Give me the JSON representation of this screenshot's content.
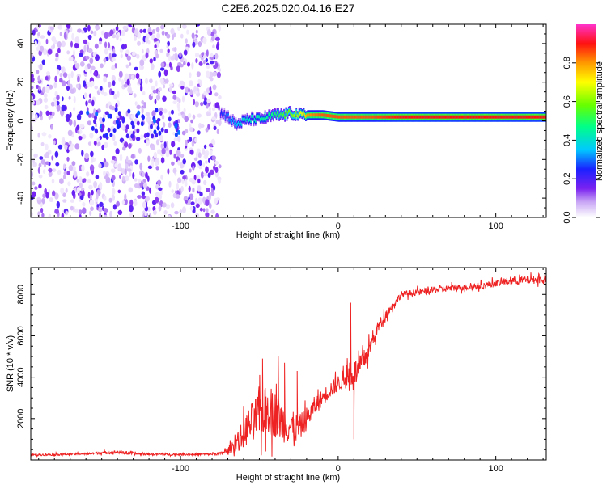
{
  "title": "C2E6.2025.020.04.16.E27",
  "chart_data": [
    {
      "type": "heatmap",
      "title": "C2E6.2025.020.04.16.E27",
      "xlabel": "Height of straight line (km)",
      "ylabel": "Frequency (Hz)",
      "xlim": [
        -195,
        132
      ],
      "ylim": [
        -50,
        50
      ],
      "x_ticks": [
        -100,
        0,
        100
      ],
      "x_tick_labels": [
        "-100",
        "0",
        "100"
      ],
      "y_ticks": [
        -40,
        -20,
        0,
        20,
        40
      ],
      "y_tick_labels": [
        "-40",
        "-20",
        "0",
        "20",
        "40"
      ],
      "colorbar": {
        "label": "Normalized spectral amplitude",
        "range": [
          0,
          1
        ],
        "ticks": [
          0,
          0.2,
          0.4,
          0.6,
          0.8
        ],
        "tick_labels": [
          "0.0",
          "0.2",
          "0.4",
          "0.6",
          "0.8"
        ],
        "colormap": "rainbow"
      },
      "noise_region": {
        "x_range": [
          -195,
          -75
        ],
        "freq_range": [
          -50,
          50
        ],
        "amplitude_range": [
          0.02,
          0.15
        ]
      },
      "ridge": {
        "x": [
          -75,
          -70,
          -65,
          -60,
          -55,
          -50,
          -45,
          -40,
          -35,
          -30,
          -25,
          -20,
          -10,
          0,
          10,
          20,
          40,
          60,
          80,
          90,
          100,
          110,
          120,
          132
        ],
        "freq": [
          4,
          2,
          -2,
          0,
          1,
          1,
          2,
          3,
          3,
          4,
          3,
          3,
          3,
          2,
          2,
          2,
          2,
          2,
          2,
          2,
          2,
          2,
          2,
          2
        ],
        "amplitude": [
          0.25,
          0.3,
          0.35,
          0.4,
          0.4,
          0.45,
          0.45,
          0.5,
          0.55,
          0.6,
          0.65,
          0.8,
          0.85,
          0.85,
          0.85,
          0.85,
          0.9,
          0.9,
          0.9,
          0.9,
          0.9,
          0.9,
          0.9,
          0.9
        ]
      },
      "grid": false
    },
    {
      "type": "line",
      "xlabel": "Height of straight line (km)",
      "ylabel": "SNR (10 * v/v)",
      "xlim": [
        -195,
        132
      ],
      "ylim": [
        0,
        9300
      ],
      "x_ticks": [
        -100,
        0,
        100
      ],
      "x_tick_labels": [
        "-100",
        "0",
        "100"
      ],
      "y_ticks": [
        2000,
        4000,
        6000,
        8000
      ],
      "y_tick_labels": [
        "2000",
        "4000",
        "6000",
        "8000"
      ],
      "series": [
        {
          "color": "#ee2222",
          "x": [
            -195,
            -180,
            -160,
            -140,
            -130,
            -120,
            -100,
            -85,
            -75,
            -70,
            -65,
            -60,
            -55,
            -50,
            -45,
            -40,
            -35,
            -30,
            -25,
            -20,
            -15,
            -10,
            -5,
            0,
            5,
            10,
            15,
            20,
            25,
            30,
            35,
            40,
            50,
            60,
            70,
            80,
            90,
            100,
            110,
            120,
            132
          ],
          "y": [
            250,
            260,
            300,
            380,
            300,
            280,
            260,
            270,
            300,
            450,
            800,
            1300,
            1800,
            2200,
            2400,
            2200,
            1800,
            1600,
            1500,
            2000,
            2600,
            3000,
            3400,
            3700,
            4000,
            4200,
            4600,
            5400,
            6400,
            7000,
            7500,
            8000,
            8100,
            8200,
            8300,
            8350,
            8400,
            8550,
            8650,
            8700,
            8750
          ],
          "noise": [
            60,
            60,
            60,
            100,
            80,
            60,
            60,
            60,
            80,
            200,
            500,
            900,
            1200,
            1400,
            1500,
            1400,
            1200,
            1000,
            800,
            700,
            600,
            500,
            500,
            500,
            700,
            800,
            700,
            500,
            400,
            300,
            200,
            200,
            200,
            200,
            200,
            200,
            200,
            200,
            250,
            250,
            250
          ]
        }
      ],
      "spikes": [
        {
          "x": -48,
          "y": 4900
        },
        {
          "x": -38,
          "y": 5000
        },
        {
          "x": -34,
          "y": 4700
        },
        {
          "x": -26,
          "y": 4300
        },
        {
          "x": 8,
          "y": 7600
        },
        {
          "x": 10,
          "y": 1000
        }
      ],
      "grid": false
    }
  ]
}
